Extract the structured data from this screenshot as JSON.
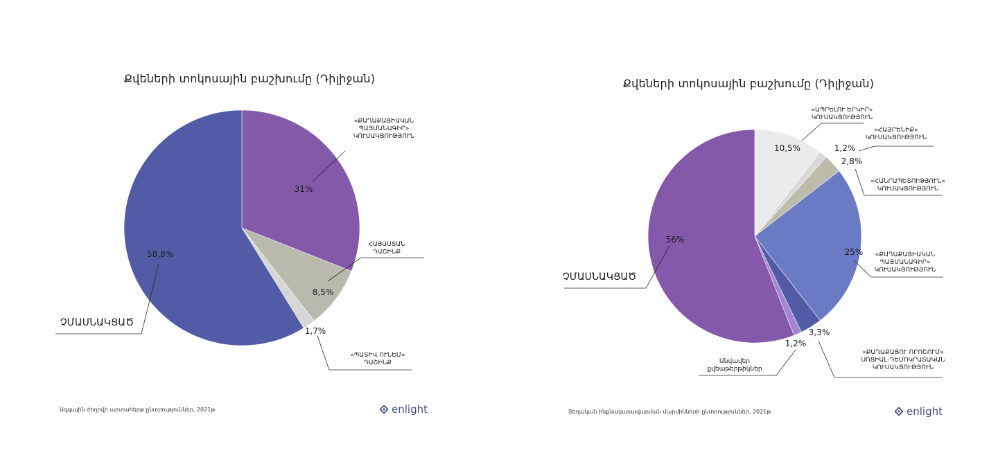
{
  "chart_data": [
    {
      "type": "pie",
      "title": "Քվեների տոկոսային բաշխումը (Դիլիջան)",
      "source": "Ազգային ժողովի արտահերթ ընտրություններ, 2021թ.",
      "brand": "enlight",
      "slices": [
        {
          "value": 31.0,
          "pct_label": "31%",
          "label_lines": [
            "«ՔԱՂԱՔԱՑԻԱԿԱՆ",
            "ՊԱՅՄԱՆԱԳԻՐ»",
            "ԿՈՒՍԱԿՑՈՒԹՅՈՒՆ"
          ],
          "color": "#8459aa"
        },
        {
          "value": 8.5,
          "pct_label": "8,5%",
          "label_lines": [
            "ՀԱՅԱՍՏԱՆ",
            "ԴԱՇԻՆՔ"
          ],
          "color": "#b9b9ac"
        },
        {
          "value": 1.7,
          "pct_label": "1,7%",
          "label_lines": [
            "«ՊԱՏԻՎ ՈՒՆԵՄ»",
            "ԴԱՇԻՆՔ"
          ],
          "color": "#d6d6d6"
        },
        {
          "value": 58.8,
          "pct_label": "58,8%",
          "label_lines": [
            "ՉՄԱՍՆԱԿՑԱԾ"
          ],
          "color": "#525ba6"
        }
      ]
    },
    {
      "type": "pie",
      "title": "Քվեների տոկոսային բաշխումը (Դիլիջան)",
      "source": "Տեղական ինքնակառավարման մարմինների ընտրություններ, 2021թ",
      "brand": "enlight",
      "slices": [
        {
          "value": 10.5,
          "pct_label": "10,5%",
          "label_lines": [
            "«ԱՊՐԵԼՈՒ ԵՐԿԻՐ»",
            "ԿՈՒՍԱԿՑՈՒԹՅՈՒՆ"
          ],
          "color": "#ebebeb"
        },
        {
          "value": 1.2,
          "pct_label": "1,2%",
          "label_lines": [
            "«ՀԱՅՐԵՆԻՔ»",
            "ԿՈՒՍԱԿՑՈՒԹՅՈՒՆ"
          ],
          "color": "#d8d8d8"
        },
        {
          "value": 2.8,
          "pct_label": "2,8%",
          "label_lines": [
            "«ՀԱՆՐԱՊԵՏՈՒԹՅՈՒՆ»",
            "ԿՈՒՍԱԿՑՈՒԹՅՈՒՆ"
          ],
          "color": "#bdbcab"
        },
        {
          "value": 25.0,
          "pct_label": "25%",
          "label_lines": [
            "«ՔԱՂԱՔԱՑԻԱԿԱՆ",
            "ՊԱՅՄԱՆԱԳԻՐ»",
            "ԿՈՒՍԱԿՑՈՒԹՅՈՒՆ"
          ],
          "color": "#6b7ac4"
        },
        {
          "value": 3.3,
          "pct_label": "3,3%",
          "label_lines": [
            "«ՔԱՂԱՔԱՑՈՒ ՈՐՈՇՈՒՄ»",
            "ՍՈՑԻԱԼ-ԴԵՄՈԿՐԱՏԱԿԱՆ",
            "ԿՈՒՍԱԿՑՈՒԹՅՈՒՆ"
          ],
          "color": "#525ba6"
        },
        {
          "value": 1.2,
          "pct_label": "1,2%",
          "label_lines": [
            "Անվավեր",
            "քվեաթերթիկներ"
          ],
          "color": "#a684d4"
        },
        {
          "value": 56.0,
          "pct_label": "56%",
          "label_lines": [
            "ՉՄԱՍՆԱԿՑԱԾ"
          ],
          "color": "#8459aa"
        }
      ]
    }
  ]
}
